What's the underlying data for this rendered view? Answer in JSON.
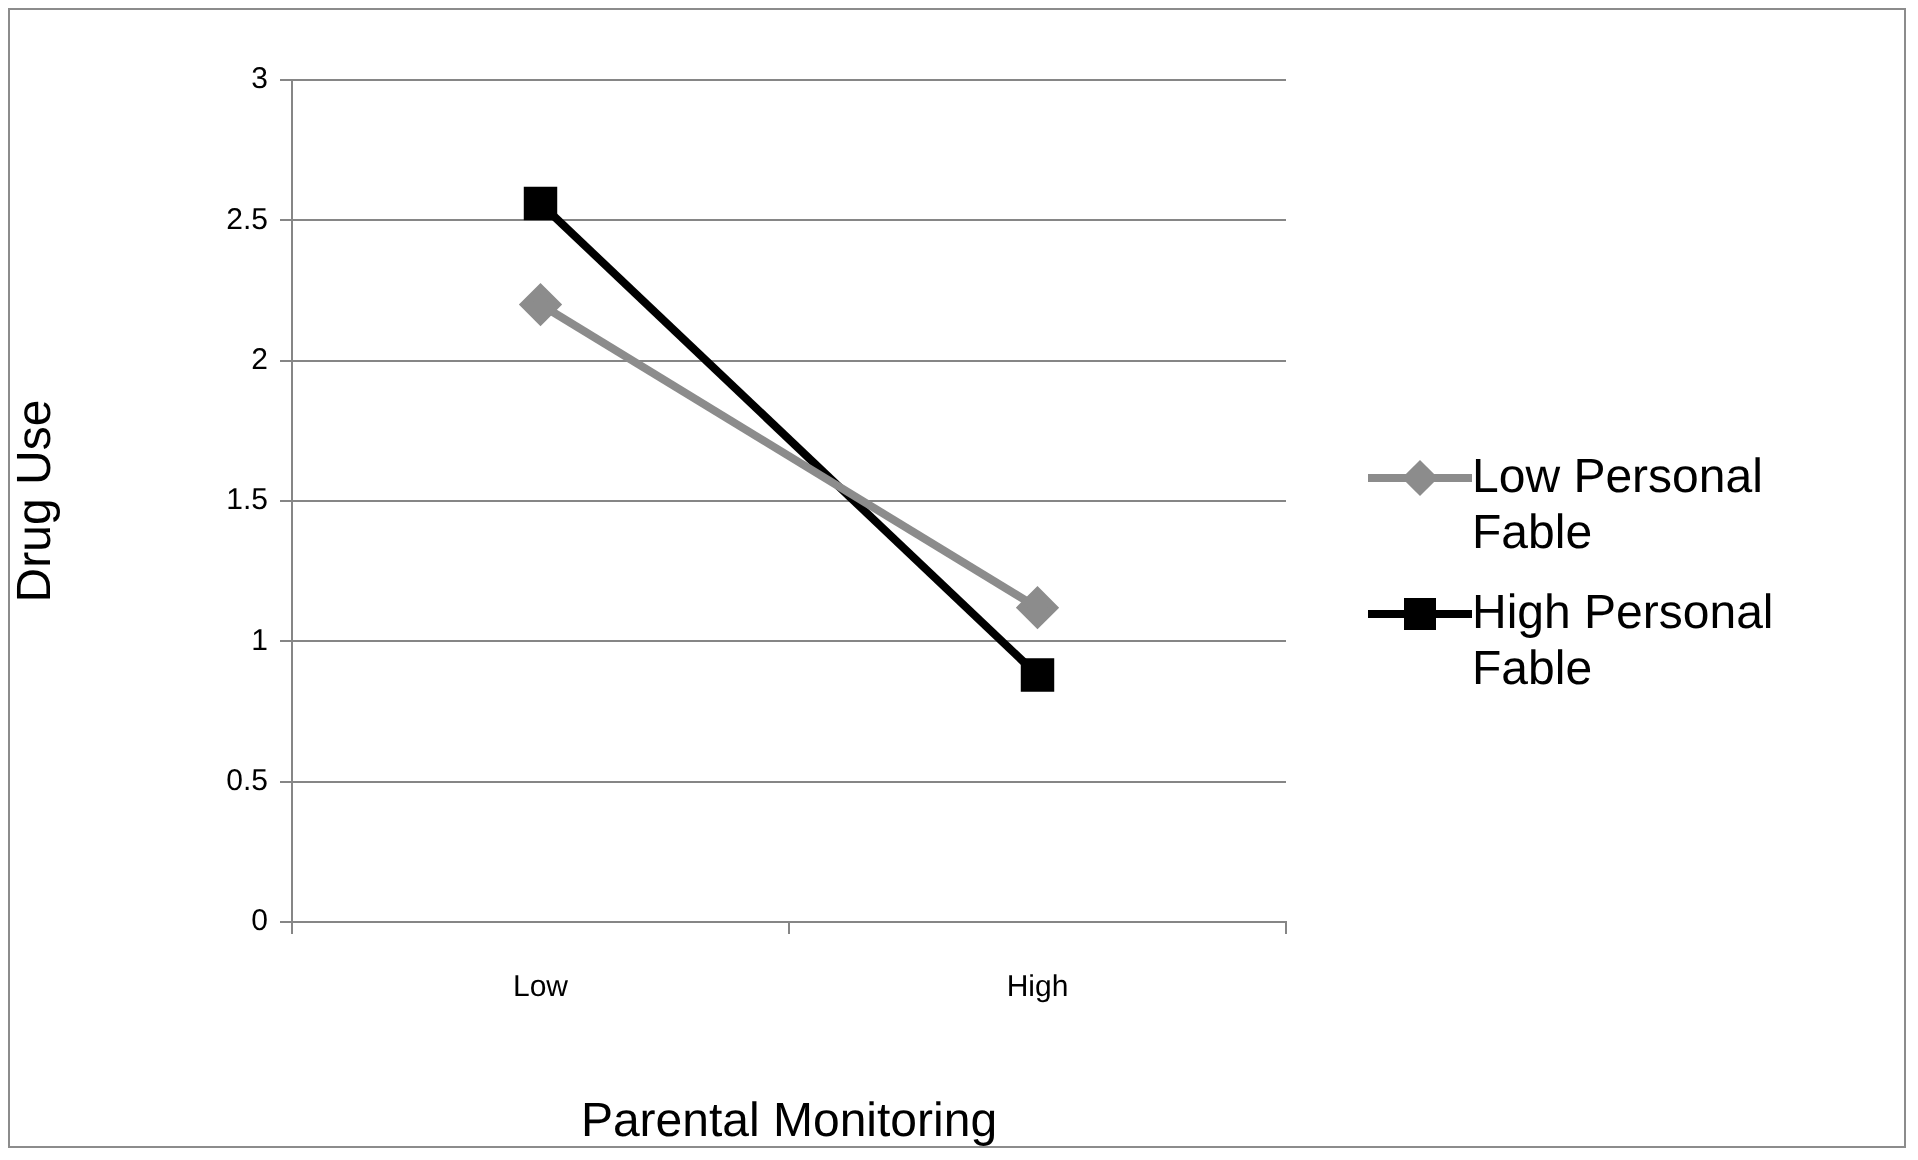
{
  "chart_data": {
    "type": "line",
    "xlabel": "Parental Monitoring",
    "ylabel": "Drug Use",
    "categories": [
      "Low",
      "High"
    ],
    "series": [
      {
        "name": "Low Personal Fable",
        "color": "#8c8c8c",
        "marker": "diamond",
        "values": [
          2.2,
          1.12
        ]
      },
      {
        "name": "High Personal Fable",
        "color": "#000000",
        "marker": "square",
        "values": [
          2.56,
          0.88
        ]
      }
    ],
    "ylim": [
      0,
      3
    ],
    "yticks": [
      0,
      0.5,
      1,
      1.5,
      2,
      2.5,
      3
    ],
    "grid": "y",
    "legend": "right"
  }
}
